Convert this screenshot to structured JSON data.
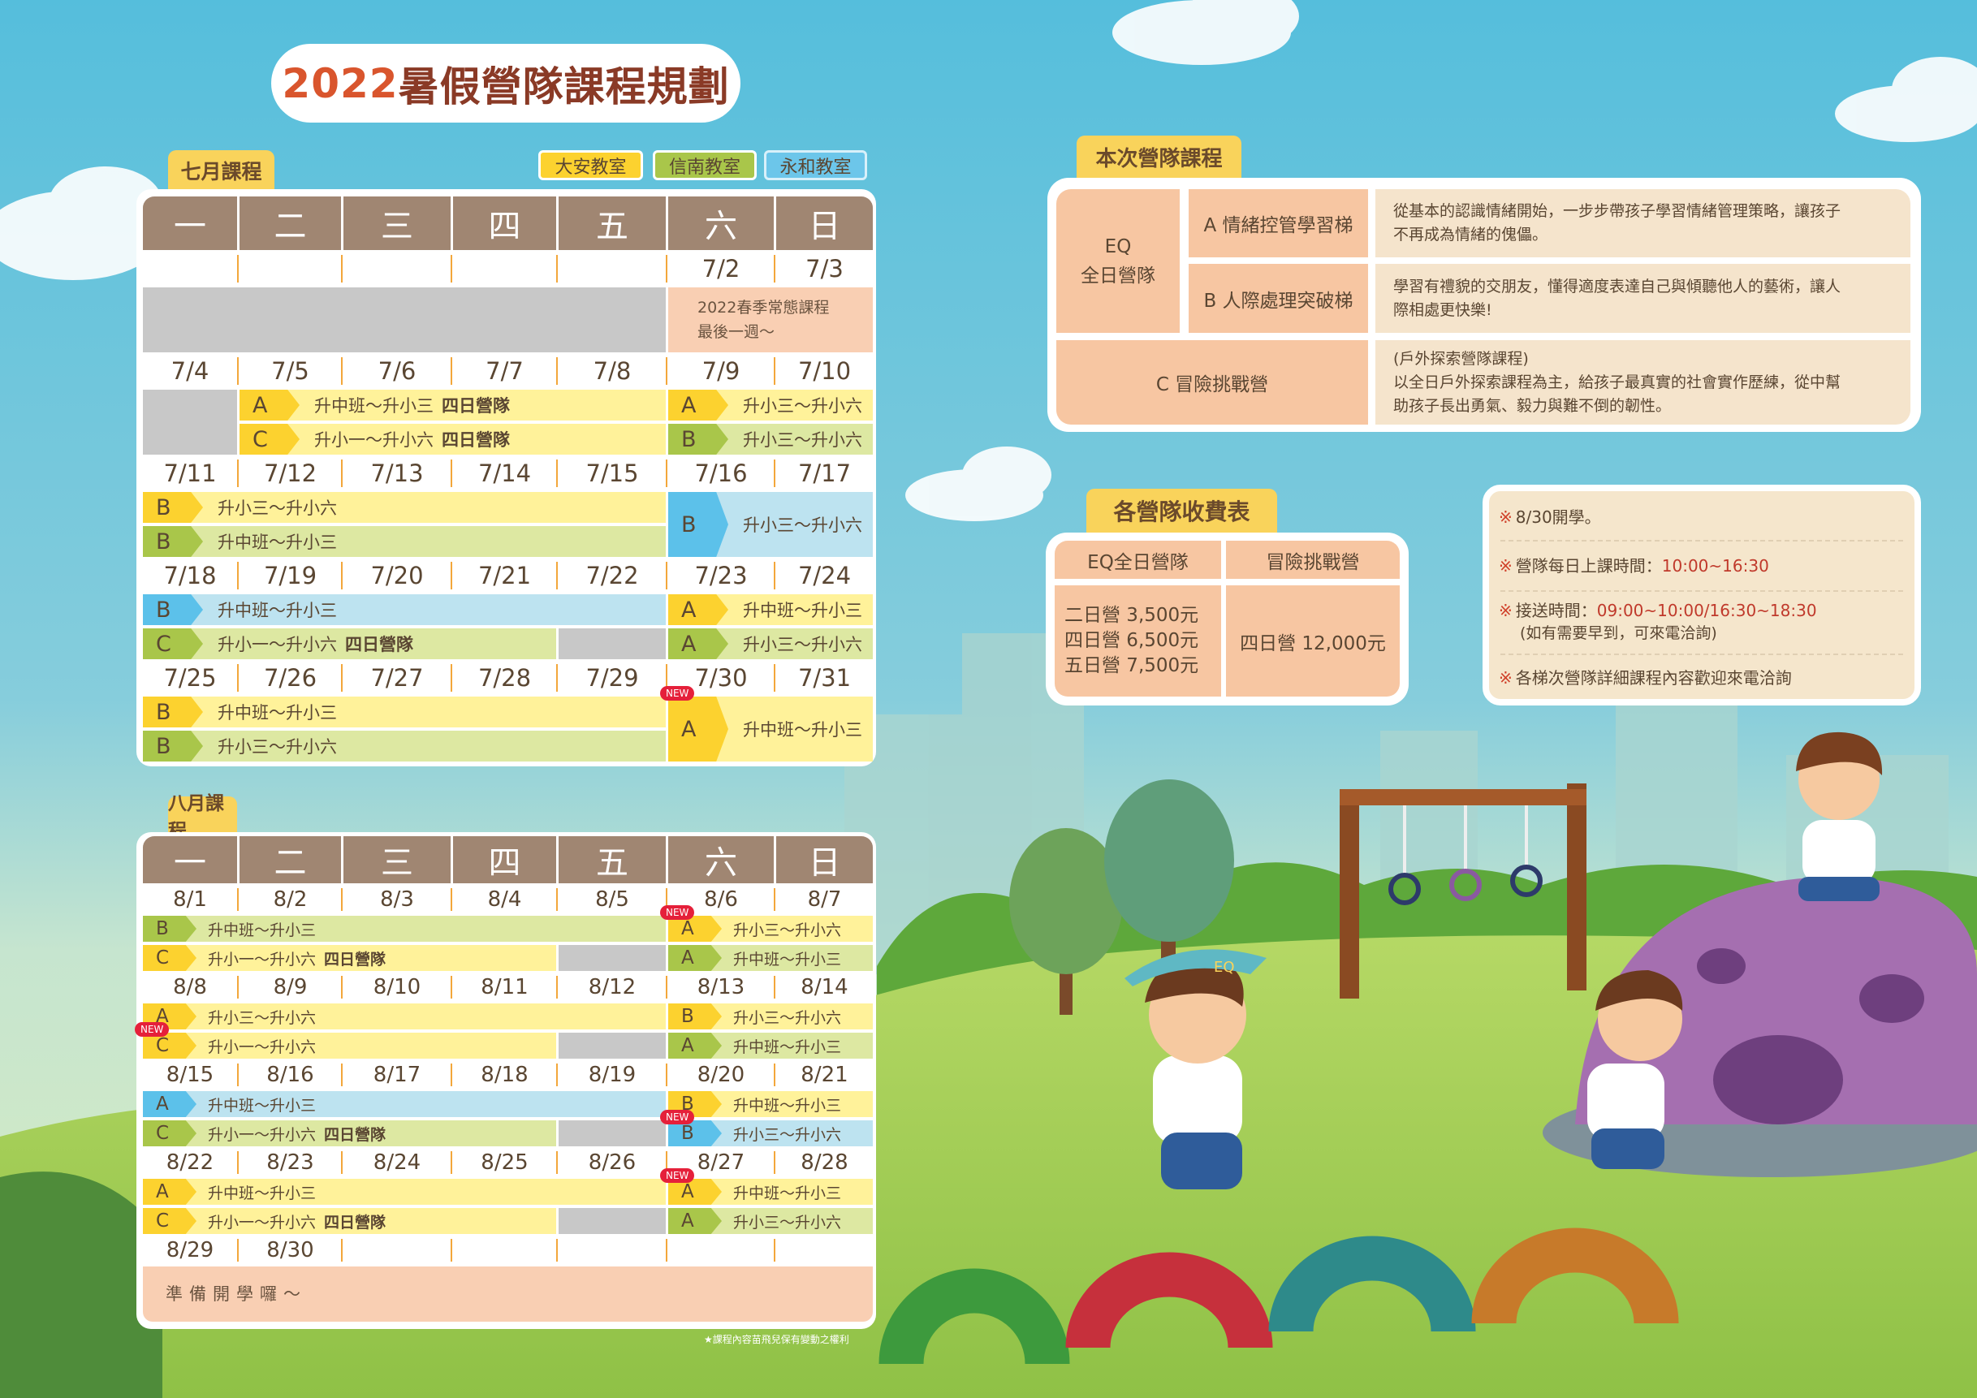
{
  "title": {
    "year": "2022",
    "text": "暑假營隊課程規劃"
  },
  "legend": [
    {
      "label": "大安教室",
      "color": "#fcd22f"
    },
    {
      "label": "信南教室",
      "color": "#a9c64a"
    },
    {
      "label": "永和教室",
      "color": "#6cc6ea"
    }
  ],
  "themes": {
    "yellow": "#fcd22f",
    "green": "#a9c64a",
    "blue": "#5cc1ea",
    "header": "#a08672",
    "peach": "#f7c6a2"
  },
  "july": {
    "label": "七月課程",
    "weekdays": [
      "一",
      "二",
      "三",
      "四",
      "五",
      "六",
      "日"
    ],
    "weeks": [
      {
        "dates": [
          "",
          "",
          "",
          "",
          "",
          "7/2",
          "7/3"
        ],
        "lanes": [
          [
            {
              "type": "gray",
              "start": 0,
              "end": 4,
              "rowspan": 2
            },
            {
              "type": "note",
              "start": 5,
              "end": 6,
              "rowspan": 2,
              "text": "2022春季常態課程\n最後一週～"
            }
          ],
          []
        ]
      },
      {
        "dates": [
          "7/4",
          "7/5",
          "7/6",
          "7/7",
          "7/8",
          "7/9",
          "7/10"
        ],
        "lanes": [
          [
            {
              "type": "gray",
              "start": 0,
              "end": 0,
              "rowspan": 2
            },
            {
              "type": "bar",
              "theme": "yellow",
              "start": 1,
              "end": 4,
              "tag": "A",
              "text": "升中班～升小三",
              "extra": "四日營隊"
            },
            {
              "type": "bar",
              "theme": "yellow",
              "start": 5,
              "end": 6,
              "tag": "A",
              "text": "升小三～升小六"
            }
          ],
          [
            {
              "type": "bar",
              "theme": "yellow",
              "start": 1,
              "end": 4,
              "tag": "C",
              "text": "升小一～升小六",
              "extra": "四日營隊"
            },
            {
              "type": "bar",
              "theme": "green",
              "start": 5,
              "end": 6,
              "tag": "B",
              "text": "升小三～升小六"
            }
          ]
        ]
      },
      {
        "dates": [
          "7/11",
          "7/12",
          "7/13",
          "7/14",
          "7/15",
          "7/16",
          "7/17"
        ],
        "lanes": [
          [
            {
              "type": "bar",
              "theme": "yellow",
              "start": 0,
              "end": 4,
              "tag": "B",
              "text": "升小三～升小六"
            },
            {
              "type": "bar",
              "theme": "blue",
              "start": 5,
              "end": 6,
              "rowspan": 2,
              "tag": "B",
              "text": "升小三～升小六"
            }
          ],
          [
            {
              "type": "bar",
              "theme": "green",
              "start": 0,
              "end": 4,
              "tag": "B",
              "text": "升中班～升小三"
            }
          ]
        ]
      },
      {
        "dates": [
          "7/18",
          "7/19",
          "7/20",
          "7/21",
          "7/22",
          "7/23",
          "7/24"
        ],
        "lanes": [
          [
            {
              "type": "bar",
              "theme": "blue",
              "start": 0,
              "end": 4,
              "tag": "B",
              "text": "升中班～升小三"
            },
            {
              "type": "bar",
              "theme": "yellow",
              "start": 5,
              "end": 6,
              "tag": "A",
              "text": "升中班～升小三"
            }
          ],
          [
            {
              "type": "bar",
              "theme": "green",
              "start": 0,
              "end": 3,
              "tag": "C",
              "text": "升小一～升小六",
              "extra": "四日營隊"
            },
            {
              "type": "gray",
              "start": 4,
              "end": 4
            },
            {
              "type": "bar",
              "theme": "green",
              "start": 5,
              "end": 6,
              "tag": "A",
              "text": "升小三～升小六"
            }
          ]
        ]
      },
      {
        "dates": [
          "7/25",
          "7/26",
          "7/27",
          "7/28",
          "7/29",
          "7/30",
          "7/31"
        ],
        "lanes": [
          [
            {
              "type": "bar",
              "theme": "yellow",
              "start": 0,
              "end": 4,
              "tag": "B",
              "text": "升中班～升小三"
            },
            {
              "type": "bar",
              "theme": "yellow",
              "start": 5,
              "end": 6,
              "rowspan": 2,
              "tag": "A",
              "text": "升中班～升小三",
              "badge": "NEW"
            }
          ],
          [
            {
              "type": "bar",
              "theme": "green",
              "start": 0,
              "end": 4,
              "tag": "B",
              "text": "升小三～升小六"
            }
          ]
        ]
      }
    ]
  },
  "august": {
    "label": "八月課程",
    "weekdays": [
      "一",
      "二",
      "三",
      "四",
      "五",
      "六",
      "日"
    ],
    "weeks": [
      {
        "dates": [
          "8/1",
          "8/2",
          "8/3",
          "8/4",
          "8/5",
          "8/6",
          "8/7"
        ],
        "lanes": [
          [
            {
              "type": "bar",
              "theme": "green",
              "start": 0,
              "end": 4,
              "tag": "B",
              "text": "升中班～升小三"
            },
            {
              "type": "bar",
              "theme": "yellow",
              "start": 5,
              "end": 6,
              "tag": "A",
              "text": "升小三～升小六",
              "badge": "NEW"
            }
          ],
          [
            {
              "type": "bar",
              "theme": "yellow",
              "start": 0,
              "end": 3,
              "tag": "C",
              "text": "升小一～升小六",
              "extra": "四日營隊"
            },
            {
              "type": "gray",
              "start": 4,
              "end": 4
            },
            {
              "type": "bar",
              "theme": "green",
              "start": 5,
              "end": 6,
              "tag": "A",
              "text": "升中班～升小三"
            }
          ]
        ]
      },
      {
        "dates": [
          "8/8",
          "8/9",
          "8/10",
          "8/11",
          "8/12",
          "8/13",
          "8/14"
        ],
        "lanes": [
          [
            {
              "type": "bar",
              "theme": "yellow",
              "start": 0,
              "end": 4,
              "tag": "A",
              "text": "升小三～升小六"
            },
            {
              "type": "bar",
              "theme": "yellow",
              "start": 5,
              "end": 6,
              "tag": "B",
              "text": "升小三～升小六"
            }
          ],
          [
            {
              "type": "bar",
              "theme": "yellow",
              "start": 0,
              "end": 3,
              "tag": "C",
              "text": "升小一～升小六",
              "badge": "NEW"
            },
            {
              "type": "gray",
              "start": 4,
              "end": 4
            },
            {
              "type": "bar",
              "theme": "green",
              "start": 5,
              "end": 6,
              "tag": "A",
              "text": "升中班～升小三"
            }
          ]
        ]
      },
      {
        "dates": [
          "8/15",
          "8/16",
          "8/17",
          "8/18",
          "8/19",
          "8/20",
          "8/21"
        ],
        "lanes": [
          [
            {
              "type": "bar",
              "theme": "blue",
              "start": 0,
              "end": 4,
              "tag": "A",
              "text": "升中班～升小三"
            },
            {
              "type": "bar",
              "theme": "yellow",
              "start": 5,
              "end": 6,
              "tag": "B",
              "text": "升中班～升小三"
            }
          ],
          [
            {
              "type": "bar",
              "theme": "green",
              "start": 0,
              "end": 3,
              "tag": "C",
              "text": "升小一～升小六",
              "extra": "四日營隊"
            },
            {
              "type": "gray",
              "start": 4,
              "end": 4
            },
            {
              "type": "bar",
              "theme": "blue",
              "start": 5,
              "end": 6,
              "tag": "B",
              "text": "升小三～升小六",
              "badge": "NEW"
            }
          ]
        ]
      },
      {
        "dates": [
          "8/22",
          "8/23",
          "8/24",
          "8/25",
          "8/26",
          "8/27",
          "8/28"
        ],
        "lanes": [
          [
            {
              "type": "bar",
              "theme": "yellow",
              "start": 0,
              "end": 4,
              "tag": "A",
              "text": "升中班～升小三"
            },
            {
              "type": "bar",
              "theme": "yellow",
              "start": 5,
              "end": 6,
              "tag": "A",
              "text": "升中班～升小三",
              "badge": "NEW"
            }
          ],
          [
            {
              "type": "bar",
              "theme": "yellow",
              "start": 0,
              "end": 3,
              "tag": "C",
              "text": "升小一～升小六",
              "extra": "四日營隊"
            },
            {
              "type": "gray",
              "start": 4,
              "end": 4
            },
            {
              "type": "bar",
              "theme": "green",
              "start": 5,
              "end": 6,
              "tag": "A",
              "text": "升小三～升小六"
            }
          ]
        ]
      },
      {
        "dates": [
          "8/29",
          "8/30",
          "",
          "",
          "",
          "",
          ""
        ],
        "lanes": [
          [
            {
              "type": "note",
              "start": 0,
              "end": 6,
              "rowspan": 2,
              "text": "準備開學囉～"
            }
          ],
          []
        ]
      }
    ]
  },
  "footnote": "★課程內容苗飛兒保有變動之權利",
  "courses": {
    "label": "本次營隊課程",
    "eq": {
      "line1": "EQ",
      "line2": "全日營隊"
    },
    "a": {
      "name": "A 情緒控管學習梯",
      "desc": "從基本的認識情緒開始，一步步帶孩子學習情緒管理策略，讓孩子\n不再成為情緒的傀儡。"
    },
    "b": {
      "name": "B 人際處理突破梯",
      "desc": "學習有禮貌的交朋友，懂得適度表達自己與傾聽他人的藝術，讓人\n際相處更快樂!"
    },
    "c": {
      "name": "C 冒險挑戰營",
      "desc": "(戶外探索營隊課程)\n以全日戶外探索課程為主，給孩子最真實的社會實作歷練，從中幫\n助孩子長出勇氣、毅力與難不倒的韌性。"
    }
  },
  "fees": {
    "label": "各營隊收費表",
    "headers": [
      "EQ全日營隊",
      "冒險挑戰營"
    ],
    "eq": [
      "二日營 3,500元",
      "四日營 6,500元",
      "五日營 7,500元"
    ],
    "adventure": "四日營 12,000元"
  },
  "notes": [
    {
      "mark": "※",
      "text": "8/30開學。"
    },
    {
      "mark": "※",
      "text": "營隊每日上課時間：",
      "highlight": "10:00~16:30"
    },
    {
      "mark": "※",
      "text": "接送時間：",
      "highlight": "09:00~10:00/16:30~18:30",
      "sub": "(如有需要早到，可來電洽詢)"
    },
    {
      "mark": "※",
      "text": "各梯次營隊詳細課程內容歡迎來電洽詢"
    }
  ],
  "illustration": {
    "cap_text": "EQ"
  }
}
